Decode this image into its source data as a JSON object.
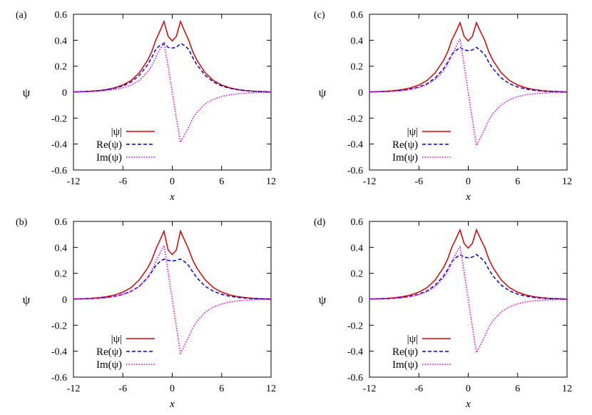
{
  "chart_data": [
    {
      "type": "line",
      "panel_label": "(a)",
      "xlabel": "x",
      "ylabel": "ψ",
      "xlim": [
        -12,
        12
      ],
      "ylim": [
        -0.6,
        0.6
      ],
      "xticks": [
        -12,
        -6,
        0,
        6,
        12
      ],
      "yticks": [
        -0.6,
        -0.4,
        -0.2,
        0,
        0.2,
        0.4,
        0.6
      ],
      "xtick_labels": [
        "-12",
        "-6",
        "0",
        "6",
        "12"
      ],
      "ytick_labels": [
        "-0.6",
        "-0.4",
        "-0.2",
        "0",
        "0.2",
        "0.4",
        "0.6"
      ],
      "grid": false,
      "legend_position": "bottom-left",
      "series": [
        {
          "name": "|ψ|",
          "color": "#dd0000",
          "dash": "solid",
          "x": [
            -12,
            -11,
            -10,
            -9,
            -8,
            -7,
            -6,
            -5,
            -4,
            -3,
            -2.5,
            -2,
            -1.5,
            -1,
            -0.5,
            0,
            0.5,
            1,
            1.5,
            2,
            2.5,
            3,
            4,
            5,
            6,
            7,
            8,
            9,
            10,
            11,
            12
          ],
          "y": [
            0.002,
            0.004,
            0.007,
            0.012,
            0.02,
            0.033,
            0.055,
            0.09,
            0.15,
            0.245,
            0.31,
            0.4,
            0.47,
            0.545,
            0.43,
            0.395,
            0.43,
            0.545,
            0.47,
            0.4,
            0.31,
            0.245,
            0.15,
            0.09,
            0.055,
            0.033,
            0.02,
            0.012,
            0.007,
            0.004,
            0.002
          ]
        },
        {
          "name": "Re(ψ)",
          "color": "#0000dd",
          "dash": "dashed",
          "x": [
            -12,
            -11,
            -10,
            -9,
            -8,
            -7,
            -6,
            -5,
            -4,
            -3,
            -2.5,
            -2,
            -1.5,
            -1,
            -0.5,
            0,
            0.5,
            1,
            1.5,
            2,
            2.5,
            3,
            4,
            5,
            6,
            7,
            8,
            9,
            10,
            11,
            12
          ],
          "y": [
            0.002,
            0.004,
            0.006,
            0.01,
            0.018,
            0.03,
            0.048,
            0.078,
            0.13,
            0.21,
            0.265,
            0.33,
            0.36,
            0.375,
            0.345,
            0.34,
            0.345,
            0.375,
            0.36,
            0.33,
            0.265,
            0.21,
            0.13,
            0.078,
            0.048,
            0.03,
            0.018,
            0.01,
            0.006,
            0.004,
            0.002
          ]
        },
        {
          "name": "Im(ψ)",
          "color": "#ee00ee",
          "dash": "dotted",
          "x": [
            -12,
            -11,
            -10,
            -9,
            -8,
            -7,
            -6,
            -5,
            -4,
            -3,
            -2.5,
            -2,
            -1.5,
            -1,
            -0.5,
            0,
            0.5,
            1,
            1.5,
            2,
            2.5,
            3,
            4,
            5,
            6,
            7,
            8,
            9,
            10,
            11,
            12
          ],
          "y": [
            0.001,
            0.002,
            0.004,
            0.007,
            0.012,
            0.02,
            0.033,
            0.055,
            0.09,
            0.155,
            0.2,
            0.27,
            0.33,
            0.38,
            0.2,
            0,
            -0.2,
            -0.385,
            -0.33,
            -0.27,
            -0.2,
            -0.155,
            -0.09,
            -0.055,
            -0.033,
            -0.02,
            -0.012,
            -0.007,
            -0.004,
            -0.002,
            -0.001
          ]
        }
      ]
    },
    {
      "type": "line",
      "panel_label": "(c)",
      "xlabel": "x",
      "ylabel": "ψ",
      "xlim": [
        -12,
        12
      ],
      "ylim": [
        -0.6,
        0.6
      ],
      "xticks": [
        -12,
        -6,
        0,
        6,
        12
      ],
      "yticks": [
        -0.6,
        -0.4,
        -0.2,
        0,
        0.2,
        0.4,
        0.6
      ],
      "xtick_labels": [
        "-12",
        "-6",
        "0",
        "6",
        "12"
      ],
      "ytick_labels": [
        "-0.6",
        "-0.4",
        "-0.2",
        "0",
        "0.2",
        "0.4",
        "0.6"
      ],
      "grid": false,
      "legend_position": "bottom-left",
      "series": [
        {
          "name": "|ψ|",
          "color": "#dd0000",
          "dash": "solid",
          "x": [
            -12,
            -11,
            -10,
            -9,
            -8,
            -7,
            -6,
            -5,
            -4,
            -3,
            -2.5,
            -2,
            -1.5,
            -1,
            -0.5,
            0,
            0.5,
            1,
            1.5,
            2,
            2.5,
            3,
            4,
            5,
            6,
            7,
            8,
            9,
            10,
            11,
            12
          ],
          "y": [
            0.002,
            0.004,
            0.007,
            0.012,
            0.02,
            0.033,
            0.055,
            0.09,
            0.15,
            0.245,
            0.31,
            0.4,
            0.465,
            0.535,
            0.43,
            0.395,
            0.43,
            0.535,
            0.465,
            0.4,
            0.31,
            0.245,
            0.15,
            0.09,
            0.055,
            0.033,
            0.02,
            0.012,
            0.007,
            0.004,
            0.002
          ]
        },
        {
          "name": "Re(ψ)",
          "color": "#0000dd",
          "dash": "dashed",
          "x": [
            -12,
            -11,
            -10,
            -9,
            -8,
            -7,
            -6,
            -5,
            -4,
            -3,
            -2.5,
            -2,
            -1.5,
            -1,
            -0.5,
            0,
            0.5,
            1,
            1.5,
            2,
            2.5,
            3,
            4,
            5,
            6,
            7,
            8,
            9,
            10,
            11,
            12
          ],
          "y": [
            0.002,
            0.003,
            0.005,
            0.008,
            0.014,
            0.024,
            0.04,
            0.065,
            0.11,
            0.18,
            0.23,
            0.29,
            0.32,
            0.345,
            0.325,
            0.32,
            0.325,
            0.345,
            0.32,
            0.29,
            0.23,
            0.18,
            0.11,
            0.065,
            0.04,
            0.024,
            0.014,
            0.008,
            0.005,
            0.003,
            0.002
          ]
        },
        {
          "name": "Im(ψ)",
          "color": "#ee00ee",
          "dash": "dotted",
          "x": [
            -12,
            -11,
            -10,
            -9,
            -8,
            -7,
            -6,
            -5,
            -4,
            -3,
            -2.5,
            -2,
            -1.5,
            -1,
            -0.5,
            0,
            0.5,
            1,
            1.5,
            2,
            2.5,
            3,
            4,
            5,
            6,
            7,
            8,
            9,
            10,
            11,
            12
          ],
          "y": [
            0.001,
            0.002,
            0.004,
            0.007,
            0.012,
            0.02,
            0.035,
            0.058,
            0.098,
            0.165,
            0.215,
            0.285,
            0.35,
            0.41,
            0.21,
            0,
            -0.21,
            -0.41,
            -0.35,
            -0.285,
            -0.215,
            -0.165,
            -0.098,
            -0.058,
            -0.035,
            -0.02,
            -0.012,
            -0.007,
            -0.004,
            -0.002,
            -0.001
          ]
        }
      ]
    },
    {
      "type": "line",
      "panel_label": "(b)",
      "xlabel": "x",
      "ylabel": "ψ",
      "xlim": [
        -12,
        12
      ],
      "ylim": [
        -0.6,
        0.6
      ],
      "xticks": [
        -12,
        -6,
        0,
        6,
        12
      ],
      "yticks": [
        -0.6,
        -0.4,
        -0.2,
        0,
        0.2,
        0.4,
        0.6
      ],
      "xtick_labels": [
        "-12",
        "-6",
        "0",
        "6",
        "12"
      ],
      "ytick_labels": [
        "-0.6",
        "-0.4",
        "-0.2",
        "0",
        "0.2",
        "0.4",
        "0.6"
      ],
      "grid": false,
      "legend_position": "bottom-left",
      "series": [
        {
          "name": "|ψ|",
          "color": "#dd0000",
          "dash": "solid",
          "x": [
            -12,
            -11,
            -10,
            -9,
            -8,
            -7,
            -6,
            -5,
            -4,
            -3,
            -2.5,
            -2,
            -1.5,
            -1,
            -0.5,
            0,
            0.5,
            1,
            1.5,
            2,
            2.5,
            3,
            4,
            5,
            6,
            7,
            8,
            9,
            10,
            11,
            12
          ],
          "y": [
            0.002,
            0.004,
            0.007,
            0.012,
            0.02,
            0.033,
            0.055,
            0.09,
            0.15,
            0.24,
            0.3,
            0.385,
            0.455,
            0.525,
            0.38,
            0.345,
            0.38,
            0.525,
            0.455,
            0.385,
            0.3,
            0.24,
            0.15,
            0.09,
            0.055,
            0.033,
            0.02,
            0.012,
            0.007,
            0.004,
            0.002
          ]
        },
        {
          "name": "Re(ψ)",
          "color": "#0000dd",
          "dash": "dashed",
          "x": [
            -12,
            -11,
            -10,
            -9,
            -8,
            -7,
            -6,
            -5,
            -4,
            -3,
            -2.5,
            -2,
            -1.5,
            -1,
            -0.5,
            0,
            0.5,
            1,
            1.5,
            2,
            2.5,
            3,
            4,
            5,
            6,
            7,
            8,
            9,
            10,
            11,
            12
          ],
          "y": [
            0.002,
            0.003,
            0.005,
            0.008,
            0.014,
            0.023,
            0.038,
            0.062,
            0.1,
            0.165,
            0.21,
            0.26,
            0.29,
            0.31,
            0.3,
            0.295,
            0.3,
            0.31,
            0.29,
            0.26,
            0.21,
            0.165,
            0.1,
            0.062,
            0.038,
            0.023,
            0.014,
            0.008,
            0.005,
            0.003,
            0.002
          ]
        },
        {
          "name": "Im(ψ)",
          "color": "#ee00ee",
          "dash": "dotted",
          "x": [
            -12,
            -11,
            -10,
            -9,
            -8,
            -7,
            -6,
            -5,
            -4,
            -3,
            -2.5,
            -2,
            -1.5,
            -1,
            -0.5,
            0,
            0.5,
            1,
            1.5,
            2,
            2.5,
            3,
            4,
            5,
            6,
            7,
            8,
            9,
            10,
            11,
            12
          ],
          "y": [
            0.001,
            0.002,
            0.004,
            0.007,
            0.012,
            0.021,
            0.036,
            0.06,
            0.1,
            0.17,
            0.22,
            0.29,
            0.355,
            0.415,
            0.21,
            0,
            -0.21,
            -0.415,
            -0.355,
            -0.29,
            -0.22,
            -0.17,
            -0.1,
            -0.06,
            -0.036,
            -0.021,
            -0.012,
            -0.007,
            -0.004,
            -0.002,
            -0.001
          ]
        }
      ]
    },
    {
      "type": "line",
      "panel_label": "(d)",
      "xlabel": "x",
      "ylabel": "ψ",
      "xlim": [
        -12,
        12
      ],
      "ylim": [
        -0.6,
        0.6
      ],
      "xticks": [
        -12,
        -6,
        0,
        6,
        12
      ],
      "yticks": [
        -0.6,
        -0.4,
        -0.2,
        0,
        0.2,
        0.4,
        0.6
      ],
      "xtick_labels": [
        "-12",
        "-6",
        "0",
        "6",
        "12"
      ],
      "ytick_labels": [
        "-0.6",
        "-0.4",
        "-0.2",
        "0",
        "0.2",
        "0.4",
        "0.6"
      ],
      "grid": false,
      "legend_position": "bottom-left",
      "series": [
        {
          "name": "|ψ|",
          "color": "#dd0000",
          "dash": "solid",
          "x": [
            -12,
            -11,
            -10,
            -9,
            -8,
            -7,
            -6,
            -5,
            -4,
            -3,
            -2.5,
            -2,
            -1.5,
            -1,
            -0.5,
            0,
            0.5,
            1,
            1.5,
            2,
            2.5,
            3,
            4,
            5,
            6,
            7,
            8,
            9,
            10,
            11,
            12
          ],
          "y": [
            0.002,
            0.004,
            0.007,
            0.012,
            0.02,
            0.033,
            0.055,
            0.09,
            0.15,
            0.245,
            0.31,
            0.4,
            0.465,
            0.535,
            0.43,
            0.395,
            0.43,
            0.535,
            0.465,
            0.4,
            0.31,
            0.245,
            0.15,
            0.09,
            0.055,
            0.033,
            0.02,
            0.012,
            0.007,
            0.004,
            0.002
          ]
        },
        {
          "name": "Re(ψ)",
          "color": "#0000dd",
          "dash": "dashed",
          "x": [
            -12,
            -11,
            -10,
            -9,
            -8,
            -7,
            -6,
            -5,
            -4,
            -3,
            -2.5,
            -2,
            -1.5,
            -1,
            -0.5,
            0,
            0.5,
            1,
            1.5,
            2,
            2.5,
            3,
            4,
            5,
            6,
            7,
            8,
            9,
            10,
            11,
            12
          ],
          "y": [
            0.002,
            0.003,
            0.005,
            0.008,
            0.014,
            0.024,
            0.04,
            0.065,
            0.11,
            0.18,
            0.23,
            0.29,
            0.32,
            0.345,
            0.325,
            0.32,
            0.325,
            0.345,
            0.32,
            0.29,
            0.23,
            0.18,
            0.11,
            0.065,
            0.04,
            0.024,
            0.014,
            0.008,
            0.005,
            0.003,
            0.002
          ]
        },
        {
          "name": "Im(ψ)",
          "color": "#ee00ee",
          "dash": "dotted",
          "x": [
            -12,
            -11,
            -10,
            -9,
            -8,
            -7,
            -6,
            -5,
            -4,
            -3,
            -2.5,
            -2,
            -1.5,
            -1,
            -0.5,
            0,
            0.5,
            1,
            1.5,
            2,
            2.5,
            3,
            4,
            5,
            6,
            7,
            8,
            9,
            10,
            11,
            12
          ],
          "y": [
            0.001,
            0.002,
            0.004,
            0.007,
            0.012,
            0.02,
            0.035,
            0.058,
            0.098,
            0.165,
            0.215,
            0.285,
            0.35,
            0.41,
            0.21,
            0,
            -0.21,
            -0.41,
            -0.35,
            -0.285,
            -0.215,
            -0.165,
            -0.098,
            -0.058,
            -0.035,
            -0.02,
            -0.012,
            -0.007,
            -0.004,
            -0.002,
            -0.001
          ]
        }
      ]
    }
  ]
}
